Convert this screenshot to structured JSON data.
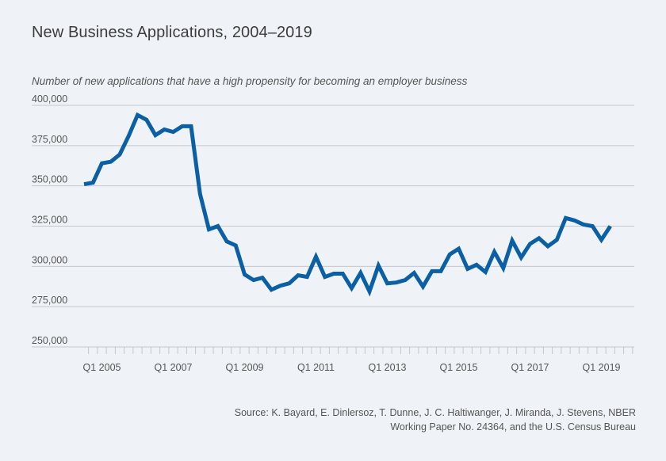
{
  "title": "New Business Applications, 2004–2019",
  "subtitle": "Number of new applications that have a high propensity for becoming an employer business",
  "source": "Source: K. Bayard, E. Dinlersoz, T. Dunne, J. C. Haltiwanger, J. Miranda, J. Stevens, NBER Working Paper No. 24364, and the U.S. Census Bureau",
  "colors": {
    "line": "#0b5fa5",
    "grid": "#c4c8ce",
    "background": "#eff2f6"
  },
  "chart_data": {
    "type": "line",
    "x_tick_labels": [
      "Q1 2005",
      "Q1 2007",
      "Q1 2009",
      "Q1 2011",
      "Q1 2013",
      "Q1 2015",
      "Q1 2017",
      "Q1 2019"
    ],
    "y_tick_labels": [
      "250,000",
      "275,000",
      "300,000",
      "325,000",
      "350,000",
      "375,000",
      "400,000"
    ],
    "ylim": [
      250000,
      400000
    ],
    "grid": "horizontal",
    "series": [
      {
        "x": [
          "Q3 2004",
          "Q4 2004",
          "Q1 2005",
          "Q2 2005",
          "Q3 2005",
          "Q4 2005",
          "Q1 2006",
          "Q2 2006",
          "Q3 2006",
          "Q4 2006",
          "Q1 2007",
          "Q2 2007",
          "Q3 2007",
          "Q4 2007",
          "Q1 2008",
          "Q2 2008",
          "Q3 2008",
          "Q4 2008",
          "Q1 2009",
          "Q2 2009",
          "Q3 2009",
          "Q4 2009",
          "Q1 2010",
          "Q2 2010",
          "Q3 2010",
          "Q4 2010",
          "Q1 2011",
          "Q2 2011",
          "Q3 2011",
          "Q4 2011",
          "Q1 2012",
          "Q2 2012",
          "Q3 2012",
          "Q4 2012",
          "Q1 2013",
          "Q2 2013",
          "Q3 2013",
          "Q4 2013",
          "Q1 2014",
          "Q2 2014",
          "Q3 2014",
          "Q4 2014",
          "Q1 2015",
          "Q2 2015",
          "Q3 2015",
          "Q4 2015",
          "Q1 2016",
          "Q2 2016",
          "Q3 2016",
          "Q4 2016",
          "Q1 2017",
          "Q2 2017",
          "Q3 2017",
          "Q4 2017",
          "Q1 2018",
          "Q2 2018",
          "Q3 2018",
          "Q4 2018",
          "Q1 2019",
          "Q2 2019"
        ],
        "values": [
          351000,
          352000,
          364000,
          365000,
          369500,
          381000,
          394000,
          391000,
          381500,
          385000,
          383500,
          387000,
          387000,
          345000,
          323000,
          325000,
          315500,
          313000,
          295000,
          291500,
          293000,
          285500,
          288000,
          289500,
          294500,
          293500,
          306000,
          293500,
          295500,
          295500,
          286500,
          296000,
          284500,
          300500,
          289500,
          290000,
          291500,
          296000,
          287500,
          297000,
          297000,
          307500,
          311000,
          298500,
          301000,
          296500,
          309000,
          299000,
          316000,
          305500,
          314000,
          317500,
          312500,
          316500,
          330000,
          328500,
          326000,
          325000,
          316500,
          325000
        ]
      }
    ]
  }
}
